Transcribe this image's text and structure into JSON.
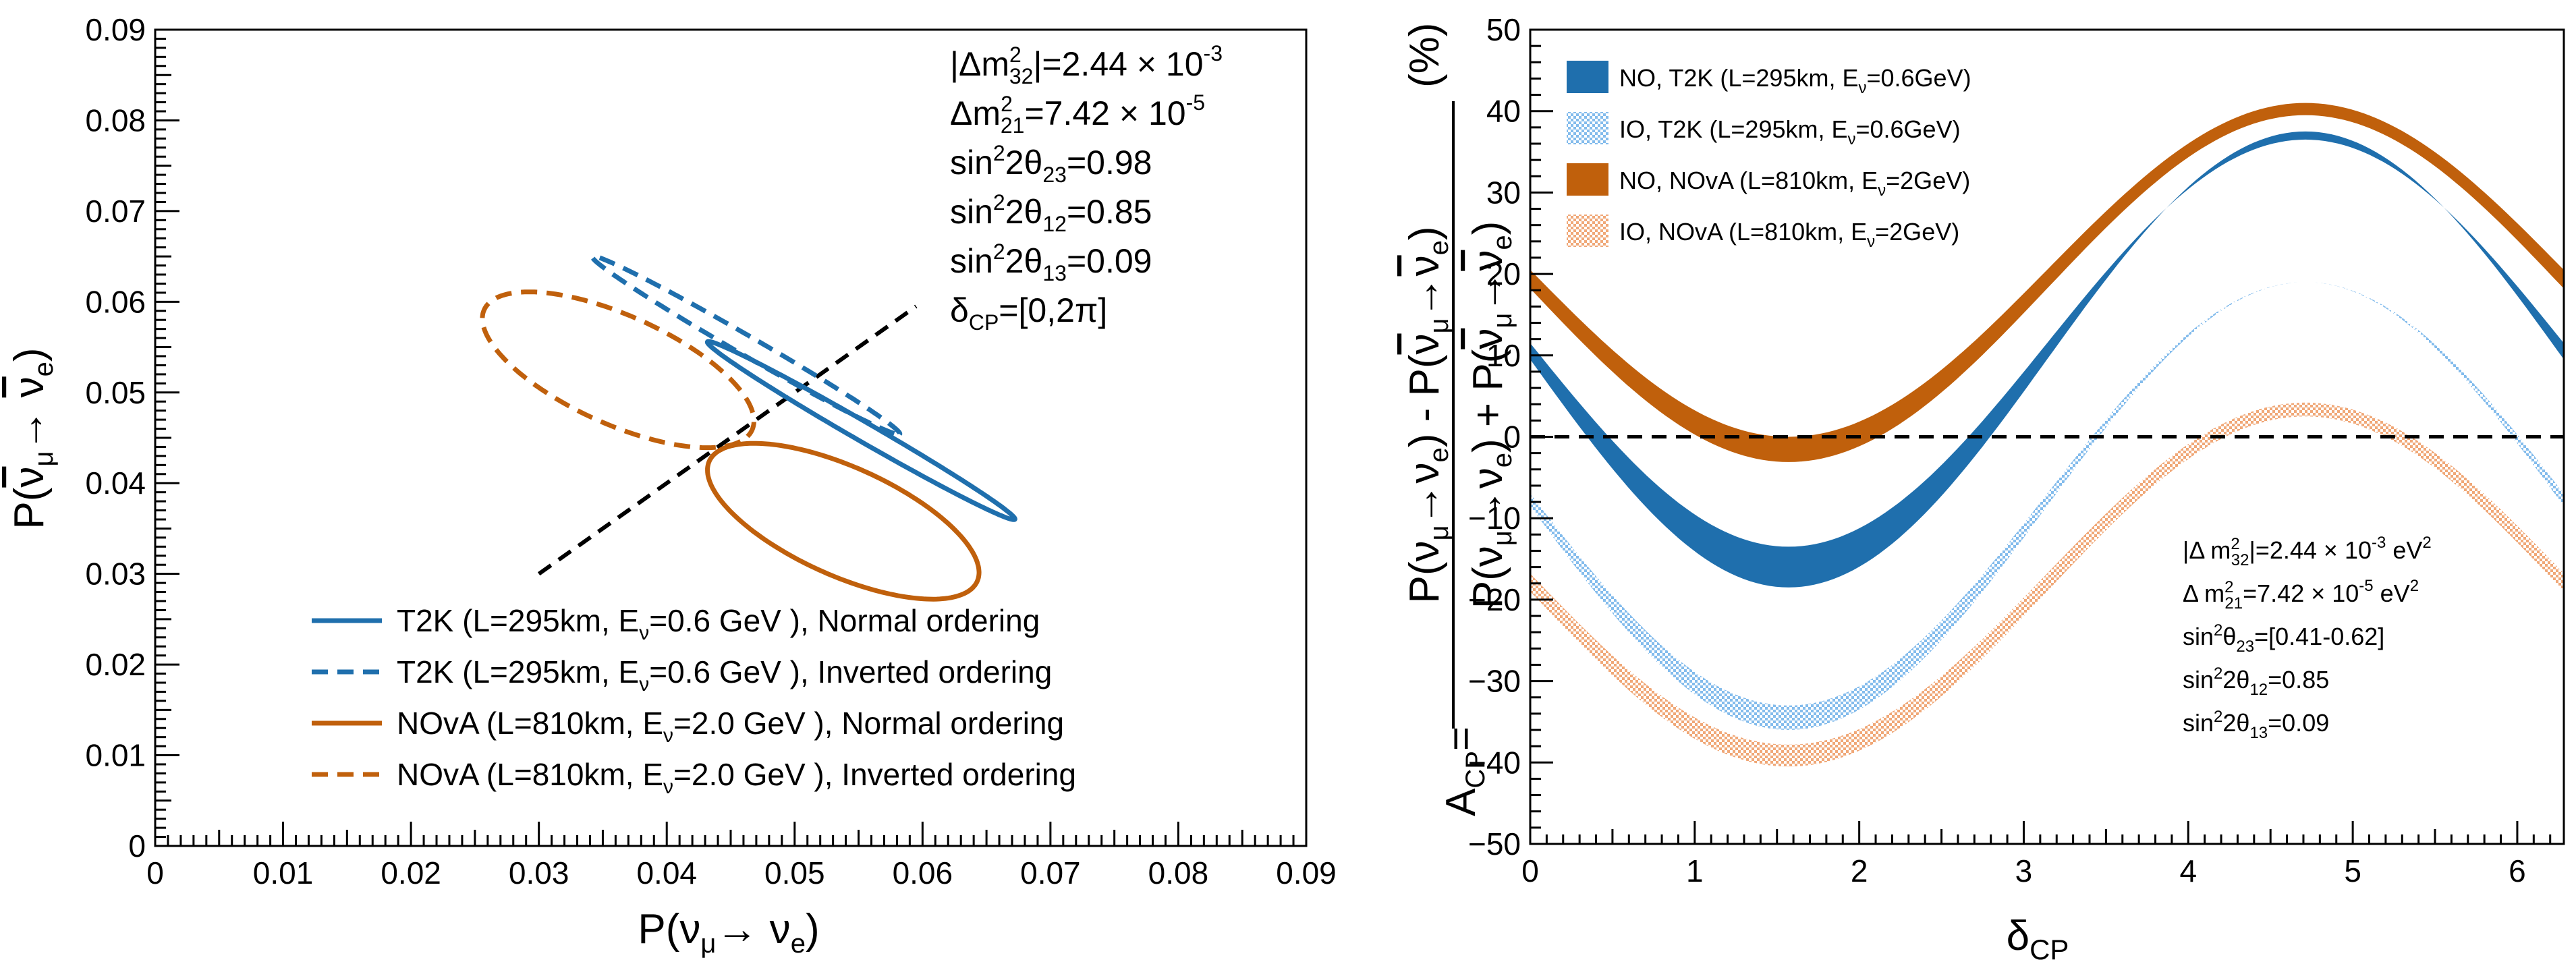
{
  "colors": {
    "blue": "#1f6fad",
    "orange": "#c0600c",
    "lightblue": "#84bcec",
    "lightorange": "#f0a878",
    "black": "#000000"
  },
  "chart_data": [
    {
      "type": "line",
      "xlabel": "P(ν_μ→ ν_e)",
      "ylabel": "P(ν̄_μ→ ν̄_e)",
      "xlim": [
        0,
        0.09
      ],
      "ylim": [
        0,
        0.09
      ],
      "xticks": [
        "0",
        "0.01",
        "0.02",
        "0.03",
        "0.04",
        "0.05",
        "0.06",
        "0.07",
        "0.08",
        "0.09"
      ],
      "yticks": [
        "0",
        "0.01",
        "0.02",
        "0.03",
        "0.04",
        "0.05",
        "0.06",
        "0.07",
        "0.08",
        "0.09"
      ],
      "params": [
        {
          "main": "|Δm",
          "sup": "2",
          "sub": "32",
          "rest": "|=2.44 × 10",
          "exp": "-3"
        },
        {
          "main": "Δm",
          "sup": "2",
          "sub": "21",
          "rest": "=7.42 × 10",
          "exp": "-5"
        },
        {
          "main": "sin",
          "sup": "2",
          "sub": "",
          "rest": "2θ",
          "sub2": "23",
          "rest2": "=0.98"
        },
        {
          "main": "sin",
          "sup": "2",
          "sub": "",
          "rest": "2θ",
          "sub2": "12",
          "rest2": "=0.85"
        },
        {
          "main": "sin",
          "sup": "2",
          "sub": "",
          "rest": "2θ",
          "sub2": "13",
          "rest2": "=0.09"
        },
        {
          "main": "δ",
          "sup": "",
          "sub": "CP",
          "rest": "=[0,2π]"
        }
      ],
      "diagonal": {
        "x": [
          0.03,
          0.0595
        ],
        "y": [
          0.03,
          0.0595
        ]
      },
      "series": [
        {
          "name": "T2K NO",
          "legend_pre": "T2K (L=295km, E",
          "legend_sub": "ν",
          "legend_post": "=0.6 GeV ), Normal ordering",
          "color": "blue",
          "dash": false,
          "center": [
            0.0552,
            0.0458
          ],
          "a": 0.0155,
          "b": 0.00095,
          "angle_deg": -39.2,
          "delta_start_deg": 98,
          "delta_dir": 1
        },
        {
          "name": "T2K IO",
          "legend_pre": "T2K (L=295km, E",
          "legend_sub": "ν",
          "legend_post": "=0.6 GeV ), Inverted ordering",
          "color": "blue",
          "dash": true,
          "center": [
            0.0462,
            0.0552
          ],
          "a": 0.0155,
          "b": 0.00095,
          "angle_deg": -39.2,
          "delta_start_deg": 98,
          "delta_dir": 1
        },
        {
          "name": "NOvA NO",
          "legend_pre": "NOvA (L=810km, E",
          "legend_sub": "ν",
          "legend_post": "=2.0 GeV ), Normal ordering",
          "color": "orange",
          "dash": false,
          "center": [
            0.0538,
            0.0358
          ],
          "a": 0.0125,
          "b": 0.0055,
          "angle_deg": -36,
          "delta_start_deg": 150,
          "delta_dir": 1
        },
        {
          "name": "NOvA IO",
          "legend_pre": "NOvA (L=810km, E",
          "legend_sub": "ν",
          "legend_post": "=2.0 GeV ), Inverted ordering",
          "color": "orange",
          "dash": true,
          "center": [
            0.0362,
            0.0525
          ],
          "a": 0.0125,
          "b": 0.0055,
          "angle_deg": -36,
          "delta_start_deg": 150,
          "delta_dir": 1
        }
      ]
    },
    {
      "type": "area",
      "xlabel": "δ_CP",
      "ylabel_lines": [
        "A_CP =",
        "P(ν_μ→ν_e) - P(ν̄_μ→ν̄_e)",
        "P(ν_μ→ν_e) + P(ν̄_μ→ν̄_e)",
        "(%)"
      ],
      "xlim": [
        0,
        6.2832
      ],
      "ylim": [
        -50,
        50
      ],
      "xticks": [
        "0",
        "1",
        "2",
        "3",
        "4",
        "5",
        "6"
      ],
      "yticks": [
        "−50",
        "−40",
        "−30",
        "−20",
        "−10",
        "0",
        "10",
        "20",
        "30",
        "40",
        "50"
      ],
      "series": [
        {
          "name": "NO, T2K",
          "legend_pre": "NO, T2K (L=295km, E",
          "legend_sub": "ν",
          "legend_post": "=0.6GeV)",
          "fill": "solid",
          "color": "blue",
          "upper": {
            "offset": 11.5,
            "amp": 25,
            "phase": 0.12
          },
          "lower": {
            "offset": 9.5,
            "amp": 28,
            "phase": 0.12
          }
        },
        {
          "name": "IO, T2K",
          "legend_pre": "IO, T2K (L=295km, E",
          "legend_sub": "ν",
          "legend_post": "=0.6GeV)",
          "fill": "hatched",
          "color": "lightblue",
          "upper": {
            "offset": -7,
            "amp": 26,
            "phase": 0.12
          },
          "lower": {
            "offset": -8.5,
            "amp": 27.5,
            "phase": 0.12
          }
        },
        {
          "name": "NO, NOvA",
          "legend_pre": "NO, NOvA (L=810km, E",
          "legend_sub": "ν",
          "legend_post": "=2GeV)",
          "fill": "solid",
          "color": "orange",
          "upper": {
            "offset": 20.5,
            "amp": 20.5,
            "phase": 0.15
          },
          "lower": {
            "offset": 18.2,
            "amp": 21.3,
            "phase": 0.15
          }
        },
        {
          "name": "IO, NOvA",
          "legend_pre": "IO,  NOvA (L=810km, E",
          "legend_sub": "ν",
          "legend_post": "=2GeV)",
          "fill": "hatched",
          "color": "lightorange",
          "upper": {
            "offset": -16.8,
            "amp": 21,
            "phase": 0.15
          },
          "lower": {
            "offset": -19,
            "amp": 21.5,
            "phase": 0.15
          }
        }
      ],
      "params": [
        {
          "main": "|Δ m",
          "sup": "2",
          "sub": "32",
          "rest": "|=2.44 × 10",
          "exp": "-3",
          "rest2": " eV",
          "exp2": "2"
        },
        {
          "main": "Δ m",
          "sup": "2",
          "sub": "21",
          "rest": "=7.42 × 10",
          "exp": "-5",
          "rest2": " eV",
          "exp2": "2"
        },
        {
          "main": "sin",
          "sup": "2",
          "sub": "",
          "rest": "θ",
          "sub2": "23",
          "rest2": "=[0.41-0.62]"
        },
        {
          "main": "sin",
          "sup": "2",
          "sub": "",
          "rest": "2θ",
          "sub2": "12",
          "rest2": "=0.85"
        },
        {
          "main": "sin",
          "sup": "2",
          "sub": "",
          "rest": "2θ",
          "sub2": "13",
          "rest2": "=0.09"
        }
      ]
    }
  ]
}
